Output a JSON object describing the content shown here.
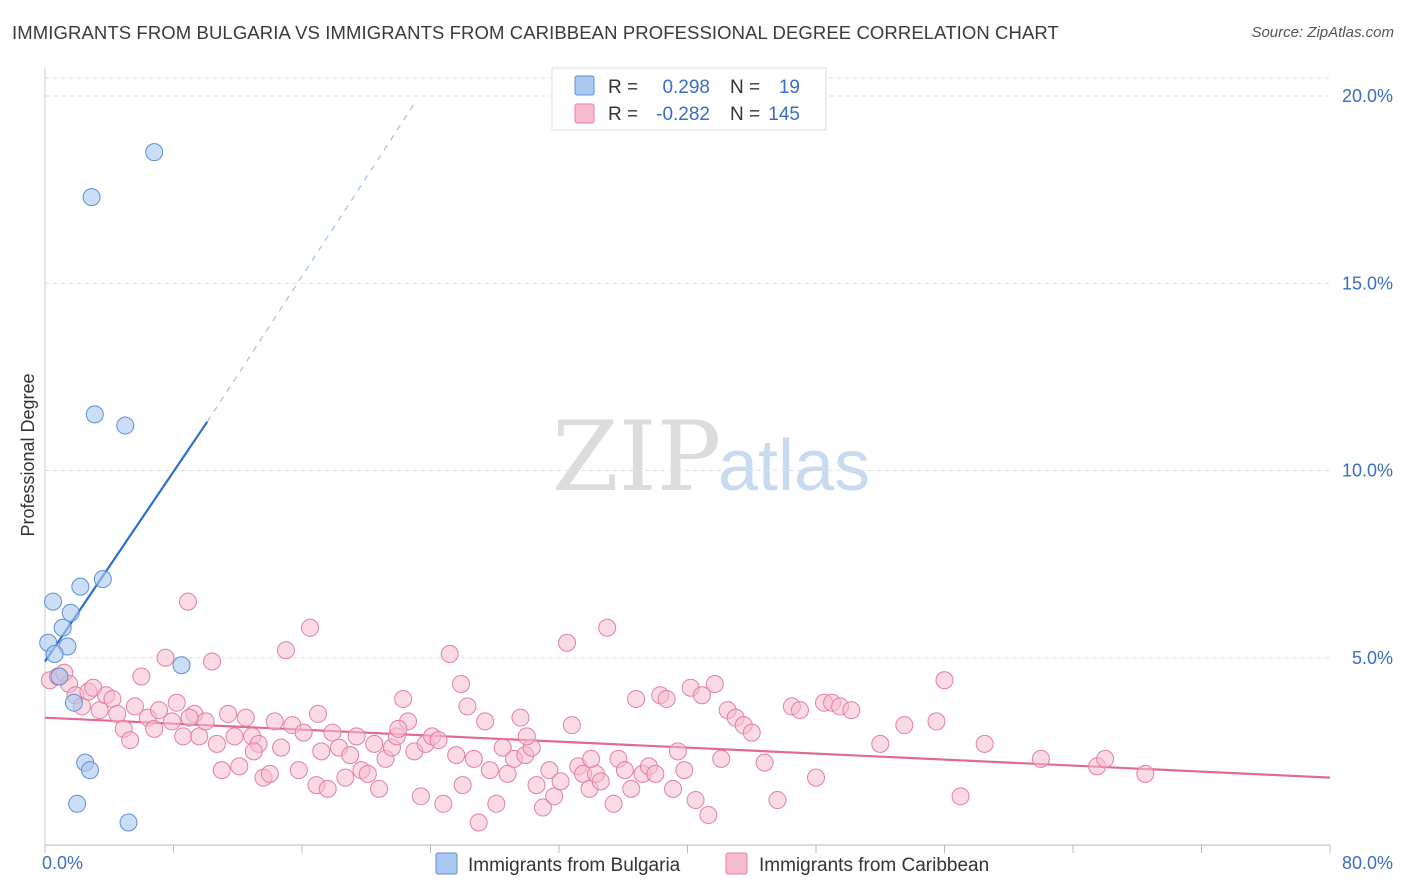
{
  "title": "IMMIGRANTS FROM BULGARIA VS IMMIGRANTS FROM CARIBBEAN PROFESSIONAL DEGREE CORRELATION CHART",
  "source": "Source: ZipAtlas.com",
  "watermark": {
    "zip": "ZIP",
    "atlas": "atlas"
  },
  "colors": {
    "bulgaria_fill": "#aac8f0",
    "bulgaria_stroke": "#5b8fd6",
    "bulgaria_line": "#2e6fcc",
    "caribbean_fill": "#f6bccd",
    "caribbean_stroke": "#e57fa0",
    "caribbean_line": "#e06a93",
    "axis_label": "#3a6ec4",
    "grid": "#dddddd"
  },
  "legend": {
    "rows": [
      {
        "r_label": "R =",
        "r_value": "0.298",
        "n_label": "N =",
        "n_value": "19"
      },
      {
        "r_label": "R =",
        "r_value": "-0.282",
        "n_label": "N =",
        "n_value": "145"
      }
    ]
  },
  "chart_data": {
    "type": "scatter",
    "ylabel": "Professional Degree",
    "xlim": [
      0,
      80
    ],
    "ylim": [
      0,
      20
    ],
    "x_tick_labels": [
      "0.0%",
      "80.0%"
    ],
    "y_tick_labels": [
      "5.0%",
      "10.0%",
      "15.0%",
      "20.0%"
    ],
    "y_ticks": [
      5,
      10,
      15,
      20
    ],
    "grid": true,
    "legend_position": "top-center",
    "series": [
      {
        "name": "Immigrants from Bulgaria",
        "r": 0.298,
        "n": 19,
        "trend": {
          "x0": 0,
          "y0": 4.9,
          "x1": 10.1,
          "y1": 11.3,
          "dash_x1": 23,
          "dash_y1": 19.8
        },
        "points": [
          [
            6.8,
            18.5
          ],
          [
            2.9,
            17.3
          ],
          [
            3.1,
            11.5
          ],
          [
            5.0,
            11.2
          ],
          [
            3.6,
            7.1
          ],
          [
            2.2,
            6.9
          ],
          [
            0.5,
            6.5
          ],
          [
            1.6,
            6.2
          ],
          [
            1.1,
            5.8
          ],
          [
            0.2,
            5.4
          ],
          [
            1.4,
            5.3
          ],
          [
            0.6,
            5.1
          ],
          [
            8.5,
            4.8
          ],
          [
            0.9,
            4.5
          ],
          [
            1.8,
            3.8
          ],
          [
            2.5,
            2.2
          ],
          [
            2.8,
            2.0
          ],
          [
            2.0,
            1.1
          ],
          [
            5.2,
            0.6
          ]
        ]
      },
      {
        "name": "Immigrants from Caribbean",
        "r": -0.282,
        "n": 145,
        "trend": {
          "x0": 0,
          "y0": 3.4,
          "x1": 80,
          "y1": 1.8
        },
        "points": [
          [
            0.3,
            4.4
          ],
          [
            0.8,
            4.5
          ],
          [
            1.2,
            4.6
          ],
          [
            1.5,
            4.3
          ],
          [
            1.9,
            4.0
          ],
          [
            2.3,
            3.7
          ],
          [
            2.7,
            4.1
          ],
          [
            3.0,
            4.2
          ],
          [
            3.4,
            3.6
          ],
          [
            3.8,
            4.0
          ],
          [
            4.2,
            3.9
          ],
          [
            4.5,
            3.5
          ],
          [
            4.9,
            3.1
          ],
          [
            5.3,
            2.8
          ],
          [
            5.6,
            3.7
          ],
          [
            6.0,
            4.5
          ],
          [
            6.4,
            3.4
          ],
          [
            6.8,
            3.1
          ],
          [
            7.1,
            3.6
          ],
          [
            7.5,
            5.0
          ],
          [
            7.9,
            3.3
          ],
          [
            8.2,
            3.8
          ],
          [
            8.6,
            2.9
          ],
          [
            8.9,
            6.5
          ],
          [
            9.3,
            3.5
          ],
          [
            9.6,
            2.9
          ],
          [
            10.0,
            3.3
          ],
          [
            10.4,
            4.9
          ],
          [
            10.7,
            2.7
          ],
          [
            11.0,
            2.0
          ],
          [
            11.4,
            3.5
          ],
          [
            11.8,
            2.9
          ],
          [
            12.1,
            2.1
          ],
          [
            12.5,
            3.4
          ],
          [
            12.9,
            2.9
          ],
          [
            13.3,
            2.7
          ],
          [
            13.6,
            1.8
          ],
          [
            14.0,
            1.9
          ],
          [
            14.3,
            3.3
          ],
          [
            14.7,
            2.6
          ],
          [
            15.0,
            5.2
          ],
          [
            15.4,
            3.2
          ],
          [
            15.8,
            2.0
          ],
          [
            16.1,
            3.0
          ],
          [
            16.5,
            5.8
          ],
          [
            16.9,
            1.6
          ],
          [
            17.2,
            2.5
          ],
          [
            17.6,
            1.5
          ],
          [
            17.9,
            3.0
          ],
          [
            18.3,
            2.6
          ],
          [
            18.7,
            1.8
          ],
          [
            19.0,
            2.4
          ],
          [
            19.4,
            2.9
          ],
          [
            19.7,
            2.0
          ],
          [
            20.1,
            1.9
          ],
          [
            20.5,
            2.7
          ],
          [
            20.8,
            1.5
          ],
          [
            21.2,
            2.3
          ],
          [
            21.6,
            2.6
          ],
          [
            21.9,
            2.9
          ],
          [
            22.3,
            3.9
          ],
          [
            22.6,
            3.3
          ],
          [
            23.0,
            2.5
          ],
          [
            23.4,
            1.3
          ],
          [
            23.7,
            2.7
          ],
          [
            24.1,
            2.9
          ],
          [
            24.5,
            2.8
          ],
          [
            24.8,
            1.1
          ],
          [
            25.2,
            5.1
          ],
          [
            25.6,
            2.4
          ],
          [
            25.9,
            4.3
          ],
          [
            26.3,
            3.7
          ],
          [
            26.7,
            2.3
          ],
          [
            27.0,
            0.6
          ],
          [
            27.4,
            3.3
          ],
          [
            27.7,
            2.0
          ],
          [
            28.1,
            1.1
          ],
          [
            28.5,
            2.6
          ],
          [
            28.8,
            1.9
          ],
          [
            29.2,
            2.3
          ],
          [
            29.6,
            3.4
          ],
          [
            29.9,
            2.4
          ],
          [
            30.3,
            2.6
          ],
          [
            30.6,
            1.6
          ],
          [
            31.0,
            1.0
          ],
          [
            31.4,
            2.0
          ],
          [
            31.7,
            1.3
          ],
          [
            32.1,
            1.7
          ],
          [
            32.5,
            5.4
          ],
          [
            32.8,
            3.2
          ],
          [
            33.2,
            2.1
          ],
          [
            33.5,
            1.9
          ],
          [
            33.9,
            1.5
          ],
          [
            34.3,
            1.9
          ],
          [
            34.6,
            1.7
          ],
          [
            35.0,
            5.8
          ],
          [
            35.4,
            1.1
          ],
          [
            35.7,
            2.3
          ],
          [
            36.1,
            2.0
          ],
          [
            36.5,
            1.5
          ],
          [
            36.8,
            3.9
          ],
          [
            37.2,
            1.9
          ],
          [
            37.6,
            2.1
          ],
          [
            38.0,
            1.9
          ],
          [
            38.3,
            4.0
          ],
          [
            38.7,
            3.9
          ],
          [
            39.1,
            1.5
          ],
          [
            39.4,
            2.5
          ],
          [
            39.8,
            2.0
          ],
          [
            40.2,
            4.2
          ],
          [
            40.5,
            1.2
          ],
          [
            40.9,
            4.0
          ],
          [
            41.3,
            0.8
          ],
          [
            41.7,
            4.3
          ],
          [
            42.1,
            2.3
          ],
          [
            42.5,
            3.6
          ],
          [
            43.0,
            3.4
          ],
          [
            43.5,
            3.2
          ],
          [
            44.0,
            3.0
          ],
          [
            44.8,
            2.2
          ],
          [
            45.6,
            1.2
          ],
          [
            46.5,
            3.7
          ],
          [
            47.0,
            3.6
          ],
          [
            48.0,
            1.8
          ],
          [
            48.5,
            3.8
          ],
          [
            49.0,
            3.8
          ],
          [
            49.5,
            3.7
          ],
          [
            50.2,
            3.6
          ],
          [
            52.0,
            2.7
          ],
          [
            53.5,
            3.2
          ],
          [
            55.5,
            3.3
          ],
          [
            56.0,
            4.4
          ],
          [
            57.0,
            1.3
          ],
          [
            58.5,
            2.7
          ],
          [
            62.0,
            2.3
          ],
          [
            65.5,
            2.1
          ],
          [
            66.0,
            2.3
          ],
          [
            68.5,
            1.9
          ],
          [
            9.0,
            3.4
          ],
          [
            13.0,
            2.5
          ],
          [
            17.0,
            3.5
          ],
          [
            22.0,
            3.1
          ],
          [
            26.0,
            1.6
          ],
          [
            30.0,
            2.9
          ],
          [
            34.0,
            2.3
          ]
        ]
      }
    ]
  }
}
